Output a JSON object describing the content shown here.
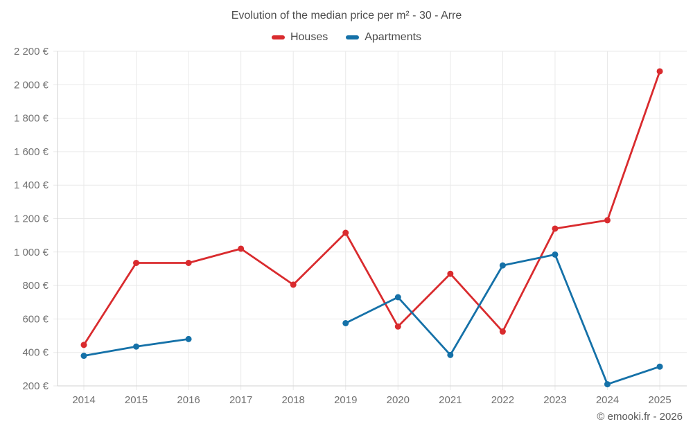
{
  "title": "Evolution of the median price per m² - 30 - Arre",
  "legend": [
    {
      "label": "Houses",
      "color": "#d92b2e"
    },
    {
      "label": "Apartments",
      "color": "#1571a8"
    }
  ],
  "footer": "© emooki.fr - 2026",
  "colors": {
    "grid": "#e9e9e9",
    "axis": "#d2d2d2",
    "tick_text": "#717171",
    "title_text": "#4d4d4d",
    "background": "#ffffff"
  },
  "chart_data": {
    "type": "line",
    "title": "Evolution of the median price per m² - 30 - Arre",
    "x": [
      2014,
      2015,
      2016,
      2017,
      2018,
      2019,
      2020,
      2021,
      2022,
      2023,
      2024,
      2025
    ],
    "series": [
      {
        "name": "Houses",
        "color": "#d92b2e",
        "values": [
          445,
          935,
          935,
          1020,
          805,
          1115,
          555,
          870,
          525,
          1140,
          1190,
          2080
        ]
      },
      {
        "name": "Apartments",
        "color": "#1571a8",
        "values": [
          380,
          435,
          480,
          null,
          null,
          575,
          730,
          385,
          920,
          985,
          210,
          315
        ]
      }
    ],
    "xlabel": "",
    "ylabel": "",
    "ylim": [
      200,
      2200
    ],
    "ytick_step": 200,
    "ytick_labels": [
      "200 €",
      "400 €",
      "600 €",
      "800 €",
      "1 000 €",
      "1 200 €",
      "1 400 €",
      "1 600 €",
      "1 800 €",
      "2 000 €",
      "2 200 €"
    ],
    "grid": true,
    "legend_position": "top",
    "marker_radius": 4.5,
    "line_width": 2.8
  }
}
